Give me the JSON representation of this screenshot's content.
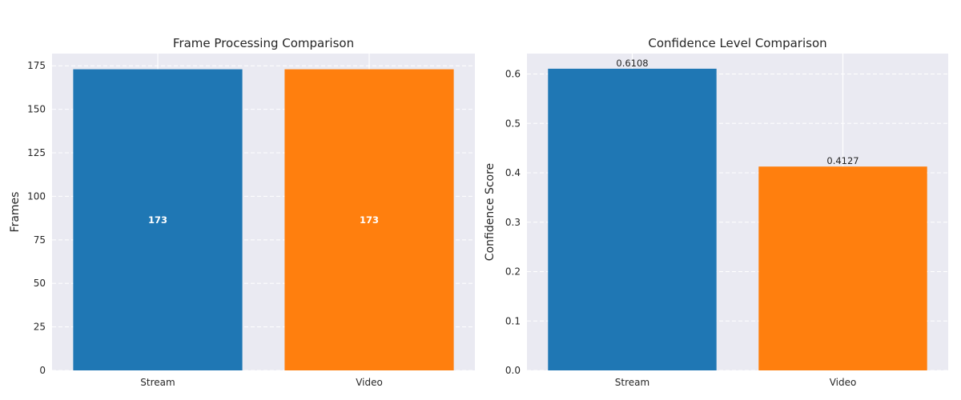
{
  "chart_data": [
    {
      "type": "bar",
      "title": "Frame Processing Comparison",
      "xlabel": "",
      "ylabel": "Frames",
      "categories": [
        "Stream",
        "Video"
      ],
      "values": [
        173,
        173
      ],
      "value_labels": [
        "173",
        "173"
      ],
      "label_position": "center",
      "colors": [
        "#1f77b4",
        "#ff7f0e"
      ],
      "ylim": [
        0,
        182
      ],
      "yticks": [
        0,
        25,
        50,
        75,
        100,
        125,
        150,
        175
      ],
      "ytick_labels": [
        "0",
        "25",
        "50",
        "75",
        "100",
        "125",
        "150",
        "175"
      ],
      "grid": true
    },
    {
      "type": "bar",
      "title": "Confidence Level Comparison",
      "xlabel": "",
      "ylabel": "Confidence Score",
      "categories": [
        "Stream",
        "Video"
      ],
      "values": [
        0.6108,
        0.4127
      ],
      "value_labels": [
        "0.6108",
        "0.4127"
      ],
      "label_position": "top",
      "colors": [
        "#1f77b4",
        "#ff7f0e"
      ],
      "ylim": [
        0,
        0.6414
      ],
      "yticks": [
        0.0,
        0.1,
        0.2,
        0.3,
        0.4,
        0.5,
        0.6
      ],
      "ytick_labels": [
        "0.0",
        "0.1",
        "0.2",
        "0.3",
        "0.4",
        "0.5",
        "0.6"
      ],
      "grid": true
    }
  ]
}
